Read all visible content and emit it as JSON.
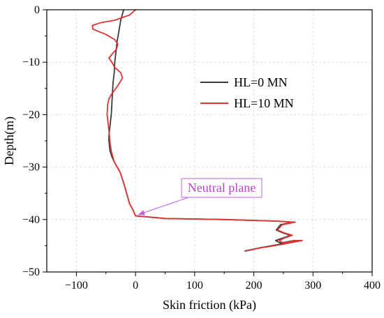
{
  "chart_data": {
    "type": "line",
    "xlabel": "Skin friction (kPa)",
    "ylabel": "Depth(m)",
    "xlim": [
      -150,
      400
    ],
    "ylim": [
      -50,
      0
    ],
    "x_ticks": [
      -100,
      0,
      100,
      200,
      300,
      400
    ],
    "y_ticks": [
      0,
      -10,
      -20,
      -30,
      -40,
      -50
    ],
    "x_tick_labels": [
      "−100",
      "0",
      "100",
      "200",
      "300",
      "400"
    ],
    "y_tick_labels": [
      "0",
      "−10",
      "−20",
      "−30",
      "−40",
      "−50"
    ],
    "grid": true,
    "legend_position": "right-middle",
    "series": [
      {
        "name": "HL=0 MN",
        "color": "#3a3a3a",
        "x": [
          -20,
          -25,
          -28,
          -31,
          -33,
          -35,
          -36,
          -38,
          -39,
          -40,
          -41,
          -42,
          -43,
          -44,
          -45,
          -45,
          -44,
          -43,
          -40,
          -36,
          -31,
          -26,
          -20,
          -15,
          -10,
          -5,
          0,
          50,
          150,
          240,
          266,
          245,
          238,
          248,
          262,
          250,
          237,
          245,
          268,
          278,
          240,
          210,
          185
        ],
        "y": [
          0,
          -2,
          -4,
          -6,
          -8,
          -10,
          -12,
          -14,
          -16,
          -18,
          -20,
          -21,
          -22,
          -23,
          -24,
          -25,
          -26,
          -27,
          -28,
          -29,
          -30,
          -31,
          -33,
          -35,
          -37,
          -38,
          -39.3,
          -39.8,
          -40,
          -40.3,
          -40.5,
          -41,
          -42,
          -42.5,
          -43,
          -43.5,
          -44,
          -44.5,
          -44,
          -44,
          -44.8,
          -45.4,
          -46
        ]
      },
      {
        "name": "HL=10 MN",
        "color": "#e03333",
        "x": [
          0,
          -10,
          -35,
          -60,
          -73,
          -72,
          -50,
          -35,
          -30,
          -32,
          -40,
          -45,
          -40,
          -35,
          -25,
          -22,
          -30,
          -40,
          -45,
          -47,
          -48,
          -46,
          -44,
          -43,
          -41,
          -36,
          -31,
          -26,
          -20,
          -15,
          -10,
          -5,
          0,
          50,
          150,
          240,
          270,
          248,
          240,
          250,
          265,
          252,
          243,
          250,
          270,
          282,
          245,
          212,
          187
        ],
        "y": [
          0,
          -1,
          -2,
          -2.5,
          -3,
          -3.7,
          -4.7,
          -5.7,
          -6.5,
          -7.5,
          -8.5,
          -9.2,
          -10,
          -11,
          -12,
          -13,
          -14.5,
          -16,
          -17,
          -18,
          -20,
          -22,
          -24,
          -25.5,
          -27,
          -29,
          -30,
          -31,
          -33,
          -35,
          -37,
          -38,
          -39.3,
          -39.8,
          -40,
          -40.3,
          -40.5,
          -41,
          -42,
          -42.5,
          -43,
          -43.5,
          -44,
          -44.5,
          -44,
          -44,
          -44.8,
          -45.4,
          -46
        ]
      }
    ],
    "annotations": [
      {
        "text": "Neutral plane",
        "x": 0,
        "y": -39.2
      }
    ]
  },
  "colors": {
    "annotation_text": "#c040d0",
    "annotation_border": "#c060e0",
    "annotation_arrow": "#c060e0",
    "axis": "#000000",
    "grid": "#dddddd"
  }
}
